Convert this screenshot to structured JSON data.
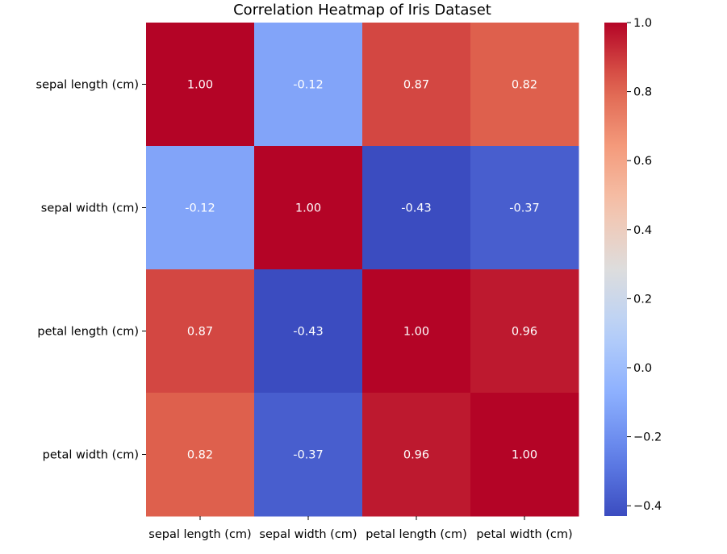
{
  "chart_data": {
    "type": "heatmap",
    "title": "Correlation Heatmap of Iris Dataset",
    "xlabel": "",
    "ylabel": "",
    "x_categories": [
      "sepal length (cm)",
      "sepal width (cm)",
      "petal length (cm)",
      "petal width (cm)"
    ],
    "y_categories": [
      "sepal length (cm)",
      "sepal width (cm)",
      "petal length (cm)",
      "petal width (cm)"
    ],
    "values": [
      [
        1.0,
        -0.12,
        0.87,
        0.82
      ],
      [
        -0.12,
        1.0,
        -0.43,
        -0.37
      ],
      [
        0.87,
        -0.43,
        1.0,
        0.96
      ],
      [
        0.82,
        -0.37,
        0.96,
        1.0
      ]
    ],
    "value_format": "2 decimals",
    "annotations_shown": true,
    "colormap": "coolwarm",
    "colorbar": {
      "range": [
        -0.43,
        1.0
      ],
      "ticks": [
        1.0,
        0.8,
        0.6,
        0.4,
        0.2,
        0.0,
        -0.2,
        -0.4
      ],
      "tick_labels": [
        "1.0",
        "0.8",
        "0.6",
        "0.4",
        "0.2",
        "0.0",
        "−0.2",
        "−0.4"
      ],
      "placement": "right"
    },
    "grid": false
  }
}
